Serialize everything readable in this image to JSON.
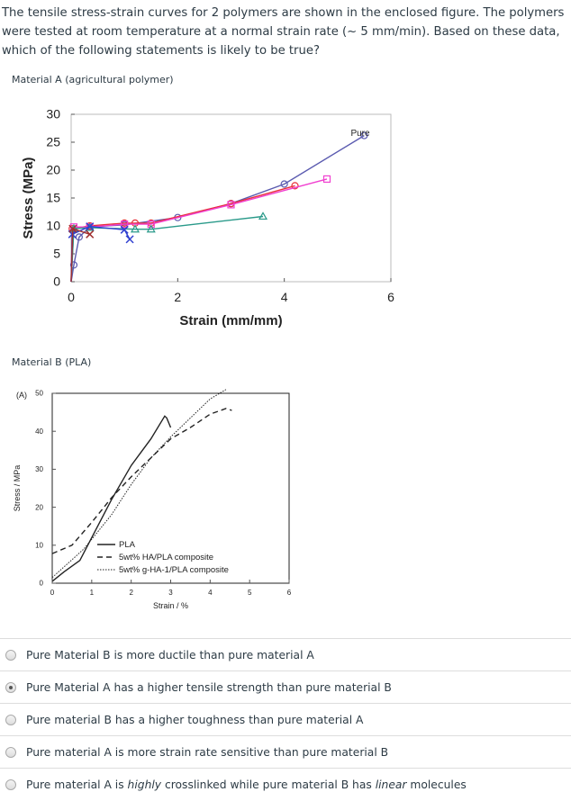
{
  "question": "The tensile stress-strain curves for 2 polymers are shown in the enclosed figure.  The polymers were tested at room temperature at a normal strain rate (~ 5 mm/min).  Based on these data, which of the following statements is likely to be true?",
  "caption_a": "Material A (agricultural polymer)",
  "caption_b": "Material B (PLA)",
  "options": [
    {
      "parts": [
        {
          "t": "Pure Material B is more ductile than pure material A"
        }
      ],
      "selected": false
    },
    {
      "parts": [
        {
          "t": "Pure Material A has a higher tensile strength than pure material B"
        }
      ],
      "selected": true
    },
    {
      "parts": [
        {
          "t": "Pure material B has a higher toughness than pure material A"
        }
      ],
      "selected": false
    },
    {
      "parts": [
        {
          "t": "Pure material A is more strain rate sensitive than pure material B"
        }
      ],
      "selected": false
    },
    {
      "parts": [
        {
          "t": "Pure material A is "
        },
        {
          "t": "highly",
          "i": true
        },
        {
          "t": " crosslinked while pure material B has "
        },
        {
          "t": "linear",
          "i": true
        },
        {
          "t": " molecules"
        }
      ],
      "selected": false
    }
  ],
  "chart_data": [
    {
      "type": "line",
      "xlabel": "Strain (mm/mm)",
      "ylabel": "Stress (MPa)",
      "xlim": [
        0,
        6
      ],
      "ylim": [
        0,
        30
      ],
      "xticks": [
        "0",
        "2",
        "4",
        "6"
      ],
      "yticks": [
        "0",
        "5",
        "10",
        "15",
        "20",
        "25",
        "30"
      ],
      "annotation": "Pure",
      "grid": false,
      "series": [
        {
          "color": "#5b5bb0",
          "marker": "circle",
          "points": [
            [
              0,
              0
            ],
            [
              0.05,
              3
            ],
            [
              0.15,
              8
            ],
            [
              0.35,
              9.8
            ],
            [
              1,
              10.2
            ],
            [
              2,
              11.5
            ],
            [
              3,
              14
            ],
            [
              4,
              17.5
            ],
            [
              5.5,
              26.2
            ]
          ]
        },
        {
          "color": "#e8303a",
          "marker": "circle",
          "points": [
            [
              0,
              0
            ],
            [
              0.02,
              9.5
            ],
            [
              0.35,
              10
            ],
            [
              1,
              10.5
            ],
            [
              1.2,
              10.5
            ],
            [
              1.5,
              10.5
            ],
            [
              3,
              14
            ],
            [
              4.2,
              17.2
            ]
          ]
        },
        {
          "color": "#f040d0",
          "marker": "square",
          "points": [
            [
              0,
              0
            ],
            [
              0.05,
              9.8
            ],
            [
              0.35,
              9.8
            ],
            [
              1,
              10.3
            ],
            [
              1.5,
              10.3
            ],
            [
              3,
              13.8
            ],
            [
              4.8,
              18.4
            ]
          ]
        },
        {
          "color": "#2a9a8a",
          "marker": "triangle",
          "points": [
            [
              0,
              0
            ],
            [
              0.05,
              9.5
            ],
            [
              0.35,
              9.7
            ],
            [
              1.2,
              9.4
            ],
            [
              1.5,
              9.4
            ],
            [
              3.6,
              11.7
            ]
          ]
        },
        {
          "color": "#3040d0",
          "marker": "x",
          "points": [
            [
              0,
              0
            ],
            [
              0.02,
              8.5
            ],
            [
              0.35,
              9.9
            ],
            [
              1,
              9.3
            ],
            [
              1.1,
              7.6
            ]
          ]
        },
        {
          "color": "#a03030",
          "marker": "x",
          "points": [
            [
              0,
              0
            ],
            [
              0.03,
              9.5
            ],
            [
              0.35,
              8.5
            ]
          ]
        }
      ]
    },
    {
      "type": "line",
      "panel": "(A)",
      "xlabel": "Strain / %",
      "ylabel": "Stress / MPa",
      "xlim": [
        0,
        6
      ],
      "ylim": [
        0,
        50
      ],
      "xticks": [
        "0",
        "1",
        "2",
        "3",
        "4",
        "5",
        "6"
      ],
      "yticks": [
        "0",
        "10",
        "20",
        "30",
        "40",
        "50"
      ],
      "grid": false,
      "legend": "bottom-center",
      "series": [
        {
          "name": "PLA",
          "style": "solid",
          "points": [
            [
              0,
              0.5
            ],
            [
              0.3,
              3
            ],
            [
              0.7,
              6
            ],
            [
              1,
              12
            ],
            [
              1.5,
              22
            ],
            [
              2,
              31
            ],
            [
              2.5,
              38
            ],
            [
              2.85,
              44
            ],
            [
              2.9,
              43.5
            ],
            [
              3,
              41
            ]
          ]
        },
        {
          "name": "5wt% HA/PLA composite",
          "style": "dashed",
          "points": [
            [
              0,
              7.8
            ],
            [
              0.5,
              10
            ],
            [
              1,
              16
            ],
            [
              1.5,
              22.5
            ],
            [
              2,
              28
            ],
            [
              2.5,
              33
            ],
            [
              3,
              38
            ],
            [
              3.5,
              41
            ],
            [
              4,
              44.5
            ],
            [
              4.4,
              46
            ],
            [
              4.55,
              45.5
            ]
          ]
        },
        {
          "name": "5wt% g-HA-1/PLA composite",
          "style": "dotted",
          "points": [
            [
              0,
              1.5
            ],
            [
              0.8,
              9
            ],
            [
              1.5,
              18
            ],
            [
              2,
              26
            ],
            [
              2.5,
              33
            ],
            [
              3,
              38.5
            ],
            [
              3.5,
              43.5
            ],
            [
              4,
              48.5
            ],
            [
              4.4,
              51
            ]
          ]
        }
      ]
    }
  ]
}
